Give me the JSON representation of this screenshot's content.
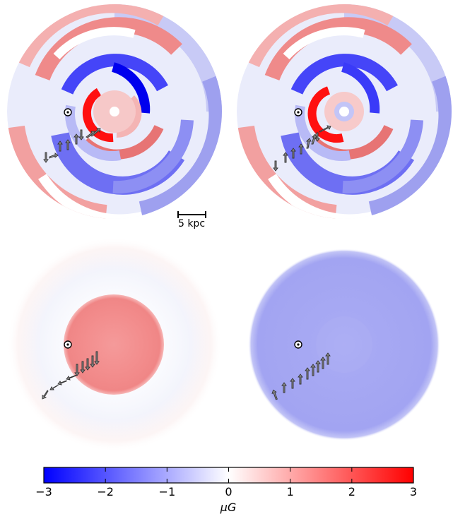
{
  "scale_bar": {
    "label": "5 kpc"
  },
  "colorbar": {
    "ticks": [
      "−3",
      "−2",
      "−1",
      "0",
      "1",
      "2",
      "3"
    ],
    "tick_values": [
      -3,
      -2,
      -1,
      0,
      1,
      2,
      3
    ],
    "range": [
      -3,
      3
    ],
    "label": "μG",
    "colormap": [
      "#0000ff",
      "#ffffff",
      "#ff0000"
    ]
  },
  "colors": {
    "strong_blue": "#1a1aff",
    "mid_blue": "#6f6ff0",
    "light_blue": "#c7c9f7",
    "strong_red": "#ff1010",
    "mid_red": "#f07c7c",
    "light_red": "#f8c8c8",
    "arrow_fill": "#8a8a8a",
    "arrow_stroke": "#333333"
  },
  "panels": [
    {
      "id": "top-left",
      "content": "spiral field map, disk component",
      "sun_marker": "sun-icon"
    },
    {
      "id": "top-right",
      "content": "spiral field map, variant",
      "sun_marker": "sun-icon"
    },
    {
      "id": "bottom-left",
      "content": "halo component, north",
      "sun_marker": "sun-icon"
    },
    {
      "id": "bottom-right",
      "content": "halo component, south",
      "sun_marker": "sun-icon"
    }
  ]
}
